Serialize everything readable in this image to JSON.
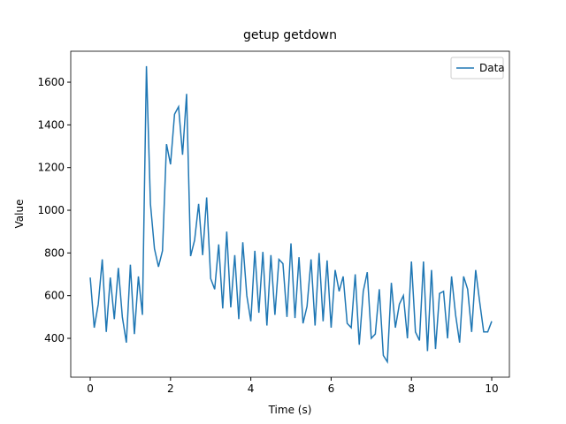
{
  "chart_data": {
    "type": "line",
    "title": "getup getdown",
    "xlabel": "Time (s)",
    "ylabel": "Value",
    "legend": "upper right",
    "x": [
      0.0,
      0.1,
      0.2,
      0.3,
      0.4,
      0.5,
      0.6,
      0.7,
      0.8,
      0.9,
      1.0,
      1.1,
      1.2,
      1.3,
      1.4,
      1.5,
      1.6,
      1.7,
      1.8,
      1.9,
      2.0,
      2.1,
      2.2,
      2.3,
      2.4,
      2.5,
      2.6,
      2.7,
      2.8,
      2.9,
      3.0,
      3.1,
      3.2,
      3.3,
      3.4,
      3.5,
      3.6,
      3.7,
      3.8,
      3.9,
      4.0,
      4.1,
      4.2,
      4.3,
      4.4,
      4.5,
      4.6,
      4.7,
      4.8,
      4.9,
      5.0,
      5.1,
      5.2,
      5.3,
      5.4,
      5.5,
      5.6,
      5.7,
      5.8,
      5.9,
      6.0,
      6.1,
      6.2,
      6.3,
      6.4,
      6.5,
      6.6,
      6.7,
      6.8,
      6.9,
      7.0,
      7.1,
      7.2,
      7.3,
      7.4,
      7.5,
      7.6,
      7.7,
      7.8,
      7.9,
      8.0,
      8.1,
      8.2,
      8.3,
      8.4,
      8.5,
      8.6,
      8.7,
      8.8,
      8.9,
      9.0,
      9.1,
      9.2,
      9.3,
      9.4,
      9.5,
      9.6,
      9.7,
      9.8,
      9.9,
      10.0
    ],
    "series": [
      {
        "name": "Data",
        "color": "#1f77b4",
        "values": [
          685,
          450,
          560,
          770,
          430,
          685,
          490,
          730,
          500,
          380,
          745,
          420,
          690,
          510,
          1675,
          1030,
          820,
          735,
          810,
          1310,
          1215,
          1450,
          1485,
          1260,
          1545,
          785,
          860,
          1030,
          790,
          1060,
          680,
          630,
          840,
          540,
          900,
          545,
          790,
          490,
          850,
          600,
          480,
          810,
          520,
          805,
          460,
          790,
          510,
          770,
          750,
          500,
          845,
          495,
          780,
          470,
          550,
          770,
          460,
          800,
          480,
          765,
          450,
          720,
          620,
          690,
          470,
          450,
          700,
          370,
          620,
          710,
          400,
          420,
          630,
          320,
          290,
          660,
          450,
          560,
          600,
          400,
          760,
          430,
          390,
          760,
          340,
          720,
          350,
          610,
          620,
          400,
          690,
          510,
          380,
          690,
          630,
          430,
          720,
          570,
          430,
          430,
          480
        ]
      }
    ],
    "xlim": [
      -0.485,
      10.44
    ],
    "xticks": [
      0,
      2,
      4,
      6,
      8,
      10
    ],
    "ylim": [
      218,
      1745
    ],
    "yticks": [
      400,
      600,
      800,
      1000,
      1200,
      1400,
      1600
    ]
  }
}
